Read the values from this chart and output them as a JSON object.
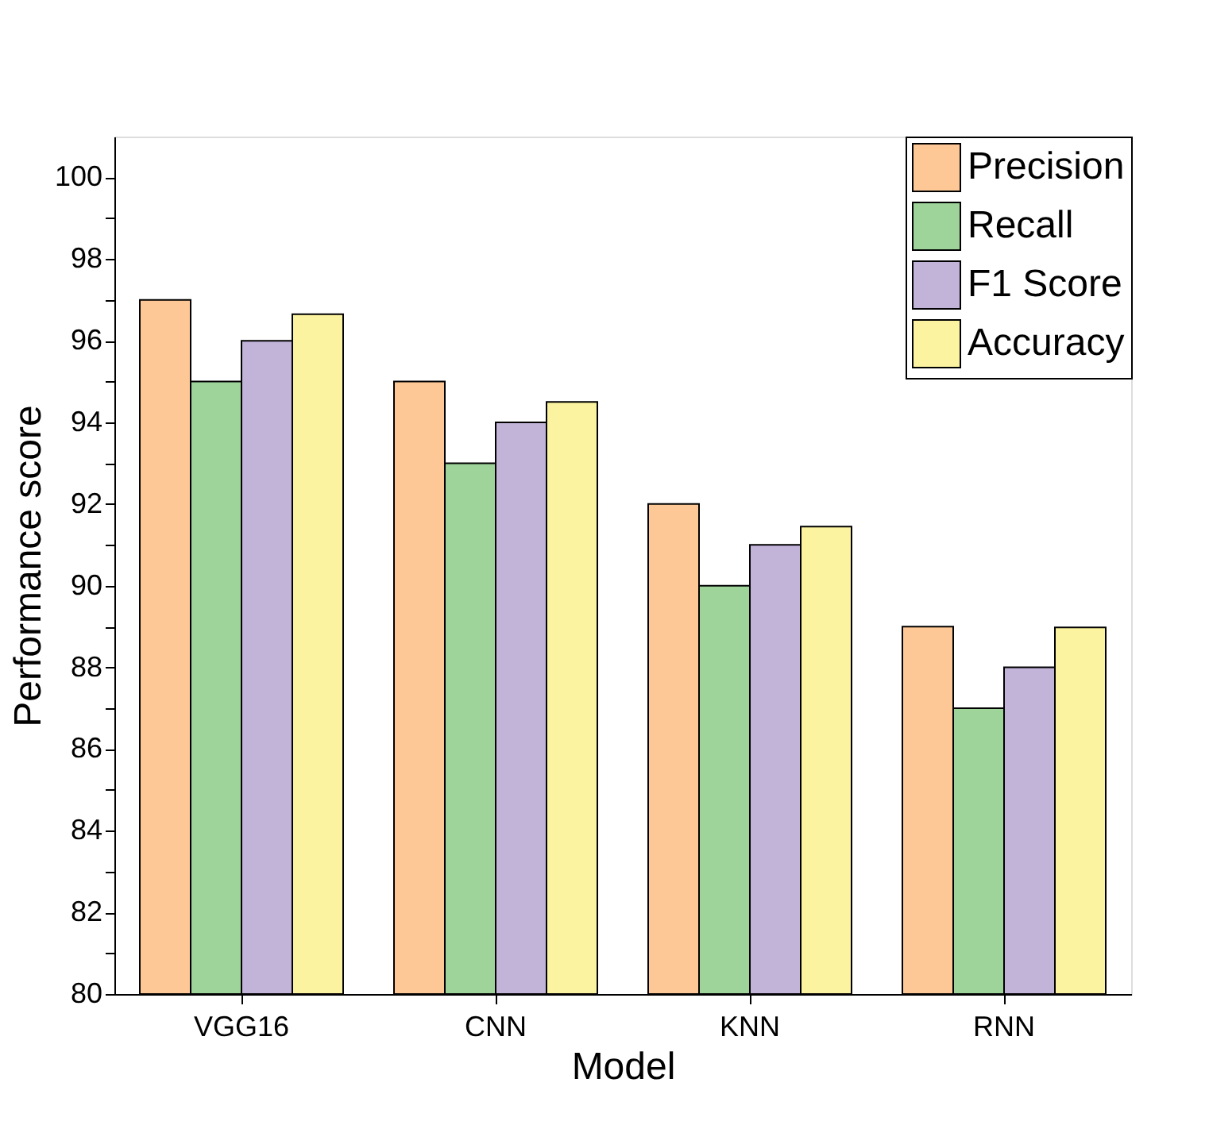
{
  "chart_data": {
    "type": "bar",
    "xlabel": "Model",
    "ylabel": "Performance score",
    "categories": [
      "VGG16",
      "CNN",
      "KNN",
      "RNN"
    ],
    "series": [
      {
        "name": "Precision",
        "color": "#fdc895",
        "values": [
          97,
          95,
          92,
          89
        ]
      },
      {
        "name": "Recall",
        "color": "#9ed49a",
        "values": [
          95,
          93,
          90,
          87
        ]
      },
      {
        "name": "F1 Score",
        "color": "#c2b3d9",
        "values": [
          96,
          94,
          91,
          88
        ]
      },
      {
        "name": "Accuracy",
        "color": "#fbf3a0",
        "values": [
          96.65,
          94.5,
          91.45,
          88.98
        ]
      }
    ],
    "ylim": [
      80,
      101
    ],
    "yticks": [
      80,
      {
        "value": 81,
        "label": null
      },
      82,
      {
        "value": 83,
        "label": null
      },
      84,
      {
        "value": 85,
        "label": null
      },
      86,
      {
        "value": 87,
        "label": null
      },
      88,
      {
        "value": 89,
        "label": null
      },
      90,
      {
        "value": 91,
        "label": null
      },
      92,
      {
        "value": 93,
        "label": null
      },
      94,
      {
        "value": 95,
        "label": null
      },
      96,
      {
        "value": 97,
        "label": null
      },
      98,
      {
        "value": 99,
        "label": null
      },
      100
    ],
    "grid": false,
    "legend": "top right"
  }
}
